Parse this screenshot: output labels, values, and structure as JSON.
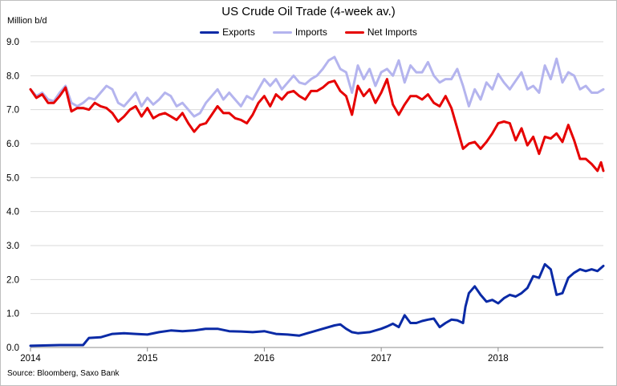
{
  "chart_data": {
    "type": "line",
    "title": "US Crude Oil Trade (4-week av.)",
    "ylabel": "Million b/d",
    "source": "Source: Bloomberg, Saxo Bank",
    "xlim": [
      2014.0,
      2018.9
    ],
    "ylim": [
      0,
      9
    ],
    "x_ticks": [
      "2014",
      "2015",
      "2016",
      "2017",
      "2018"
    ],
    "y_ticks": [
      "0.0",
      "1.0",
      "2.0",
      "3.0",
      "4.0",
      "5.0",
      "6.0",
      "7.0",
      "8.0",
      "9.0"
    ],
    "grid": true,
    "legend_position": "top-center",
    "series": [
      {
        "name": "Exports",
        "color": "#0a2aa6",
        "x": [
          2014.0,
          2014.25,
          2014.45,
          2014.5,
          2014.6,
          2014.7,
          2014.8,
          2014.9,
          2015.0,
          2015.1,
          2015.2,
          2015.3,
          2015.4,
          2015.5,
          2015.6,
          2015.7,
          2015.8,
          2015.9,
          2016.0,
          2016.1,
          2016.2,
          2016.3,
          2016.4,
          2016.5,
          2016.6,
          2016.65,
          2016.7,
          2016.75,
          2016.8,
          2016.9,
          2017.0,
          2017.05,
          2017.1,
          2017.15,
          2017.2,
          2017.25,
          2017.3,
          2017.35,
          2017.4,
          2017.45,
          2017.5,
          2017.55,
          2017.6,
          2017.65,
          2017.7,
          2017.72,
          2017.75,
          2017.8,
          2017.85,
          2017.9,
          2017.95,
          2018.0,
          2018.05,
          2018.1,
          2018.15,
          2018.2,
          2018.25,
          2018.3,
          2018.35,
          2018.4,
          2018.45,
          2018.5,
          2018.55,
          2018.6,
          2018.65,
          2018.7,
          2018.75,
          2018.8,
          2018.85,
          2018.9
        ],
        "values": [
          0.05,
          0.07,
          0.07,
          0.28,
          0.3,
          0.4,
          0.42,
          0.4,
          0.38,
          0.45,
          0.5,
          0.48,
          0.5,
          0.55,
          0.55,
          0.48,
          0.47,
          0.45,
          0.48,
          0.4,
          0.38,
          0.35,
          0.45,
          0.55,
          0.65,
          0.68,
          0.55,
          0.45,
          0.42,
          0.45,
          0.55,
          0.62,
          0.7,
          0.6,
          0.95,
          0.72,
          0.72,
          0.78,
          0.82,
          0.85,
          0.6,
          0.72,
          0.82,
          0.8,
          0.72,
          1.2,
          1.6,
          1.8,
          1.55,
          1.35,
          1.4,
          1.3,
          1.45,
          1.55,
          1.5,
          1.6,
          1.75,
          2.1,
          2.05,
          2.45,
          2.3,
          1.55,
          1.6,
          2.05,
          2.2,
          2.3,
          2.25,
          2.3,
          2.25,
          2.4
        ]
      },
      {
        "name": "Imports",
        "color": "#b4b4ee",
        "x": [
          2014.0,
          2014.05,
          2014.1,
          2014.15,
          2014.2,
          2014.25,
          2014.3,
          2014.35,
          2014.4,
          2014.45,
          2014.5,
          2014.55,
          2014.6,
          2014.65,
          2014.7,
          2014.75,
          2014.8,
          2014.85,
          2014.9,
          2014.95,
          2015.0,
          2015.05,
          2015.1,
          2015.15,
          2015.2,
          2015.25,
          2015.3,
          2015.35,
          2015.4,
          2015.45,
          2015.5,
          2015.55,
          2015.6,
          2015.65,
          2015.7,
          2015.75,
          2015.8,
          2015.85,
          2015.9,
          2015.95,
          2016.0,
          2016.05,
          2016.1,
          2016.15,
          2016.2,
          2016.25,
          2016.3,
          2016.35,
          2016.4,
          2016.45,
          2016.5,
          2016.55,
          2016.6,
          2016.65,
          2016.7,
          2016.75,
          2016.8,
          2016.85,
          2016.9,
          2016.95,
          2017.0,
          2017.05,
          2017.1,
          2017.15,
          2017.2,
          2017.25,
          2017.3,
          2017.35,
          2017.4,
          2017.45,
          2017.5,
          2017.55,
          2017.6,
          2017.65,
          2017.7,
          2017.75,
          2017.8,
          2017.85,
          2017.9,
          2017.95,
          2018.0,
          2018.05,
          2018.1,
          2018.15,
          2018.2,
          2018.25,
          2018.3,
          2018.35,
          2018.4,
          2018.45,
          2018.5,
          2018.55,
          2018.6,
          2018.65,
          2018.7,
          2018.75,
          2018.8,
          2018.85,
          2018.9
        ],
        "values": [
          7.6,
          7.4,
          7.5,
          7.3,
          7.25,
          7.5,
          7.7,
          7.2,
          7.1,
          7.2,
          7.35,
          7.3,
          7.5,
          7.7,
          7.6,
          7.2,
          7.1,
          7.3,
          7.5,
          7.1,
          7.35,
          7.15,
          7.3,
          7.5,
          7.4,
          7.1,
          7.2,
          7.0,
          6.8,
          6.9,
          7.2,
          7.4,
          7.6,
          7.3,
          7.5,
          7.3,
          7.1,
          7.4,
          7.3,
          7.6,
          7.9,
          7.7,
          7.9,
          7.6,
          7.8,
          8.0,
          7.8,
          7.75,
          7.9,
          8.0,
          8.2,
          8.45,
          8.55,
          8.2,
          8.1,
          7.5,
          8.3,
          7.9,
          8.2,
          7.7,
          8.1,
          8.2,
          8.0,
          8.45,
          7.8,
          8.3,
          8.1,
          8.1,
          8.4,
          8.0,
          7.8,
          7.9,
          7.9,
          8.2,
          7.7,
          7.1,
          7.6,
          7.3,
          7.8,
          7.6,
          8.05,
          7.8,
          7.6,
          7.85,
          8.1,
          7.6,
          7.7,
          7.5,
          8.3,
          7.9,
          8.5,
          7.8,
          8.1,
          8.0,
          7.6,
          7.7,
          7.5,
          7.5,
          7.6
        ]
      },
      {
        "name": "Net Imports",
        "color": "#e60000",
        "x": [
          2014.0,
          2014.05,
          2014.1,
          2014.15,
          2014.2,
          2014.25,
          2014.3,
          2014.35,
          2014.4,
          2014.45,
          2014.5,
          2014.55,
          2014.6,
          2014.65,
          2014.7,
          2014.75,
          2014.8,
          2014.85,
          2014.9,
          2014.95,
          2015.0,
          2015.05,
          2015.1,
          2015.15,
          2015.2,
          2015.25,
          2015.3,
          2015.35,
          2015.4,
          2015.45,
          2015.5,
          2015.55,
          2015.6,
          2015.65,
          2015.7,
          2015.75,
          2015.8,
          2015.85,
          2015.9,
          2015.95,
          2016.0,
          2016.05,
          2016.1,
          2016.15,
          2016.2,
          2016.25,
          2016.3,
          2016.35,
          2016.4,
          2016.45,
          2016.5,
          2016.55,
          2016.6,
          2016.65,
          2016.7,
          2016.75,
          2016.8,
          2016.85,
          2016.9,
          2016.95,
          2017.0,
          2017.05,
          2017.1,
          2017.15,
          2017.2,
          2017.25,
          2017.3,
          2017.35,
          2017.4,
          2017.45,
          2017.5,
          2017.55,
          2017.6,
          2017.65,
          2017.7,
          2017.75,
          2017.8,
          2017.85,
          2017.9,
          2017.95,
          2018.0,
          2018.05,
          2018.1,
          2018.15,
          2018.2,
          2018.25,
          2018.3,
          2018.35,
          2018.4,
          2018.45,
          2018.5,
          2018.55,
          2018.6,
          2018.65,
          2018.7,
          2018.75,
          2018.8,
          2018.85,
          2018.88,
          2018.9
        ],
        "values": [
          7.6,
          7.35,
          7.45,
          7.2,
          7.2,
          7.4,
          7.65,
          6.95,
          7.05,
          7.05,
          7.0,
          7.2,
          7.1,
          7.05,
          6.9,
          6.65,
          6.8,
          7.0,
          7.1,
          6.8,
          7.05,
          6.75,
          6.85,
          6.9,
          6.8,
          6.7,
          6.9,
          6.6,
          6.35,
          6.55,
          6.6,
          6.85,
          7.1,
          6.9,
          6.9,
          6.75,
          6.7,
          6.6,
          6.85,
          7.2,
          7.4,
          7.1,
          7.45,
          7.3,
          7.5,
          7.55,
          7.4,
          7.3,
          7.55,
          7.55,
          7.65,
          7.8,
          7.85,
          7.55,
          7.4,
          6.85,
          7.7,
          7.4,
          7.6,
          7.2,
          7.5,
          7.9,
          7.15,
          6.85,
          7.15,
          7.4,
          7.4,
          7.3,
          7.45,
          7.2,
          7.1,
          7.4,
          7.05,
          6.45,
          5.85,
          6.0,
          6.05,
          5.85,
          6.05,
          6.3,
          6.6,
          6.65,
          6.6,
          6.1,
          6.45,
          5.95,
          6.2,
          5.7,
          6.2,
          6.15,
          6.3,
          6.05,
          6.55,
          6.1,
          5.55,
          5.55,
          5.4,
          5.2,
          5.45,
          5.2
        ]
      }
    ]
  }
}
